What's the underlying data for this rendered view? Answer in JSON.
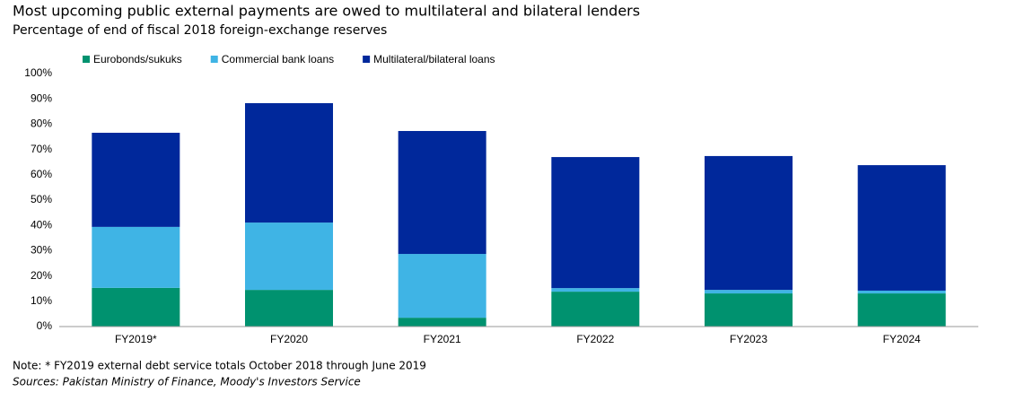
{
  "chart_data": {
    "type": "stacked_bar",
    "title": "Most upcoming public external payments are owed to multilateral and bilateral lenders",
    "subtitle": "Percentage of end of fiscal 2018 foreign-exchange reserves",
    "categories": [
      "FY2019*",
      "FY2020",
      "FY2021",
      "FY2022",
      "FY2023",
      "FY2024"
    ],
    "series": [
      {
        "name": "Eurobonds/sukuks",
        "color": "#00926f",
        "values": [
          15.3,
          14.5,
          3.5,
          13.8,
          13.1,
          13.1
        ]
      },
      {
        "name": "Commercial bank loans",
        "color": "#3fb4e5",
        "values": [
          24.1,
          26.6,
          25.2,
          1.4,
          1.4,
          1.1
        ]
      },
      {
        "name": "Multilateral/bilateral loans",
        "color": "#00289b",
        "values": [
          37.2,
          47.2,
          48.6,
          51.8,
          52.9,
          49.6
        ]
      }
    ],
    "ylim": [
      0,
      100
    ],
    "yticks": [
      {
        "value": 0,
        "label": "0%"
      },
      {
        "value": 10,
        "label": "10%"
      },
      {
        "value": 20,
        "label": "20%"
      },
      {
        "value": 30,
        "label": "30%"
      },
      {
        "value": 40,
        "label": "40%"
      },
      {
        "value": 50,
        "label": "50%"
      },
      {
        "value": 60,
        "label": "60%"
      },
      {
        "value": 70,
        "label": "70%"
      },
      {
        "value": 80,
        "label": "80%"
      },
      {
        "value": 90,
        "label": "90%"
      },
      {
        "value": 100,
        "label": "100%"
      }
    ],
    "grid": false,
    "legend": "top",
    "note": "Note: * FY2019 external debt service totals October 2018 through June 2019",
    "source": "Sources: Pakistan Ministry of Finance, Moody's Investors Service"
  }
}
